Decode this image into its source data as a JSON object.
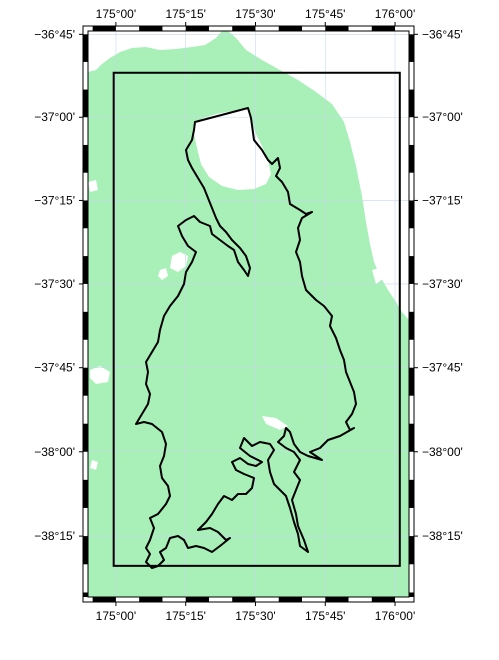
{
  "map": {
    "projection": "mercator",
    "lon_range": [
      174.9,
      176.05
    ],
    "lat_range": [
      -38.43,
      -36.74
    ],
    "frame_style": "fancy black/white",
    "colors": {
      "land": "#a8f0b8",
      "water": "#ffffff",
      "gridline": "#c8d8f0",
      "catchment_outline": "#000000",
      "bbox_outline": "#000000"
    },
    "bbox": {
      "lon": [
        174.992,
        176.017
      ],
      "lat": [
        -38.338,
        -36.866
      ]
    },
    "x_ticks": [
      {
        "lon": 175.0,
        "label": "175°00'"
      },
      {
        "lon": 175.25,
        "label": "175°15'"
      },
      {
        "lon": 175.5,
        "label": "175°30'"
      },
      {
        "lon": 175.75,
        "label": "175°45'"
      },
      {
        "lon": 176.0,
        "label": "176°00'"
      }
    ],
    "y_ticks": [
      {
        "lat": -36.75,
        "label": "−36°45'"
      },
      {
        "lat": -37.0,
        "label": "−37°00'"
      },
      {
        "lat": -37.25,
        "label": "−37°15'"
      },
      {
        "lat": -37.5,
        "label": "−37°30'"
      },
      {
        "lat": -37.75,
        "label": "−37°45'"
      },
      {
        "lat": -38.0,
        "label": "−38°00'"
      },
      {
        "lat": -38.25,
        "label": "−38°15'"
      }
    ]
  }
}
